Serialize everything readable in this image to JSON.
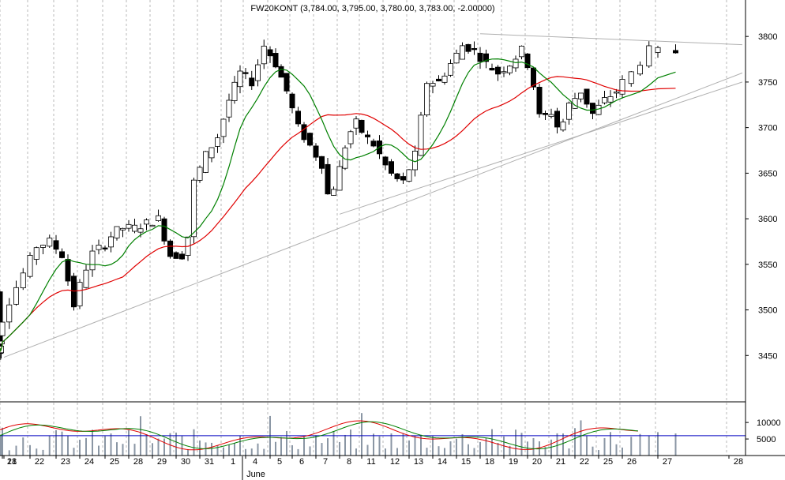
{
  "title": "FW20KONT (3,784.00, 3,795.00, 3,780.00, 3,783.00, -2.00000)",
  "colors": {
    "background": "#ffffff",
    "up_candle": "#ffffff",
    "down_candle": "#000000",
    "ma_fast": "#008000",
    "ma_slow": "#e00000",
    "trendline": "#b0b0b0",
    "grid": "#b8b8b8",
    "volume_bars": "#8a96a4",
    "volume_level": "#0000c0"
  },
  "chart_data": [
    {
      "type": "candlestick",
      "title": "FW20KONT (3,784.00, 3,795.00, 3,780.00, 3,783.00, -2.00000)",
      "y_ticks": [
        "3450",
        "3500",
        "3550",
        "3600",
        "3650",
        "3700",
        "3750",
        "3800"
      ],
      "ylim": [
        3400,
        3840
      ],
      "x_ticks": [
        "18",
        "21",
        "22",
        "23",
        "24",
        "25",
        "28",
        "29",
        "30",
        "31",
        "1",
        "4",
        "5",
        "6",
        "7",
        "8",
        "11",
        "12",
        "13",
        "14",
        "15",
        "18",
        "19",
        "20",
        "21",
        "22",
        "25",
        "26",
        "27",
        "28"
      ],
      "month_label": "June",
      "price_path": [
        {
          "d": 0.0,
          "p": 3520
        },
        {
          "d": 0.3,
          "p": 3445
        },
        {
          "d": 1.0,
          "p": 3470
        },
        {
          "d": 1.5,
          "p": 3510
        },
        {
          "d": 2.0,
          "p": 3540
        },
        {
          "d": 2.5,
          "p": 3570
        },
        {
          "d": 3.0,
          "p": 3575
        },
        {
          "d": 3.5,
          "p": 3560
        },
        {
          "d": 4.0,
          "p": 3505
        },
        {
          "d": 4.4,
          "p": 3540
        },
        {
          "d": 4.8,
          "p": 3565
        },
        {
          "d": 5.2,
          "p": 3570
        },
        {
          "d": 5.6,
          "p": 3585
        },
        {
          "d": 6.0,
          "p": 3590
        },
        {
          "d": 6.5,
          "p": 3590
        },
        {
          "d": 7.0,
          "p": 3595
        },
        {
          "d": 7.5,
          "p": 3600
        },
        {
          "d": 8.0,
          "p": 3560
        },
        {
          "d": 8.5,
          "p": 3560
        },
        {
          "d": 8.8,
          "p": 3585
        },
        {
          "d": 9.0,
          "p": 3640
        },
        {
          "d": 9.5,
          "p": 3670
        },
        {
          "d": 10.0,
          "p": 3690
        },
        {
          "d": 10.5,
          "p": 3730
        },
        {
          "d": 11.0,
          "p": 3760
        },
        {
          "d": 11.5,
          "p": 3750
        },
        {
          "d": 12.0,
          "p": 3790
        },
        {
          "d": 12.5,
          "p": 3770
        },
        {
          "d": 13.0,
          "p": 3740
        },
        {
          "d": 13.5,
          "p": 3700
        },
        {
          "d": 14.0,
          "p": 3680
        },
        {
          "d": 14.5,
          "p": 3660
        },
        {
          "d": 14.8,
          "p": 3620
        },
        {
          "d": 15.2,
          "p": 3650
        },
        {
          "d": 15.6,
          "p": 3690
        },
        {
          "d": 16.0,
          "p": 3705
        },
        {
          "d": 16.4,
          "p": 3690
        },
        {
          "d": 16.8,
          "p": 3680
        },
        {
          "d": 17.2,
          "p": 3660
        },
        {
          "d": 17.6,
          "p": 3645
        },
        {
          "d": 18.0,
          "p": 3640
        },
        {
          "d": 18.5,
          "p": 3670
        },
        {
          "d": 19.0,
          "p": 3750
        },
        {
          "d": 19.5,
          "p": 3750
        },
        {
          "d": 20.0,
          "p": 3770
        },
        {
          "d": 20.5,
          "p": 3790
        },
        {
          "d": 21.0,
          "p": 3785
        },
        {
          "d": 21.5,
          "p": 3770
        },
        {
          "d": 22.0,
          "p": 3760
        },
        {
          "d": 22.5,
          "p": 3770
        },
        {
          "d": 23.0,
          "p": 3785
        },
        {
          "d": 23.4,
          "p": 3760
        },
        {
          "d": 23.8,
          "p": 3705
        },
        {
          "d": 24.2,
          "p": 3720
        },
        {
          "d": 24.6,
          "p": 3695
        },
        {
          "d": 25.0,
          "p": 3725
        },
        {
          "d": 25.5,
          "p": 3740
        },
        {
          "d": 26.0,
          "p": 3715
        },
        {
          "d": 26.5,
          "p": 3730
        },
        {
          "d": 27.0,
          "p": 3740
        },
        {
          "d": 27.5,
          "p": 3760
        },
        {
          "d": 28.0,
          "p": 3785
        },
        {
          "d": 28.3,
          "p": 3783
        }
      ],
      "volume_axis": {
        "ticks": [
          "5000",
          "10000"
        ],
        "ylim": [
          0,
          16000
        ],
        "reference_level": 6000
      },
      "annotations": [
        {
          "type": "trendline",
          "from": {
            "d": 0.0,
            "p": 3448
          },
          "to": {
            "d": 33.5,
            "p": 3760
          }
        },
        {
          "type": "trendline",
          "from": {
            "d": 15.0,
            "p": 3605
          },
          "to": {
            "d": 33.5,
            "p": 3750
          }
        },
        {
          "type": "trendline",
          "from": {
            "d": 21.0,
            "p": 3803
          },
          "to": {
            "d": 30.5,
            "p": 3791
          }
        }
      ]
    }
  ]
}
